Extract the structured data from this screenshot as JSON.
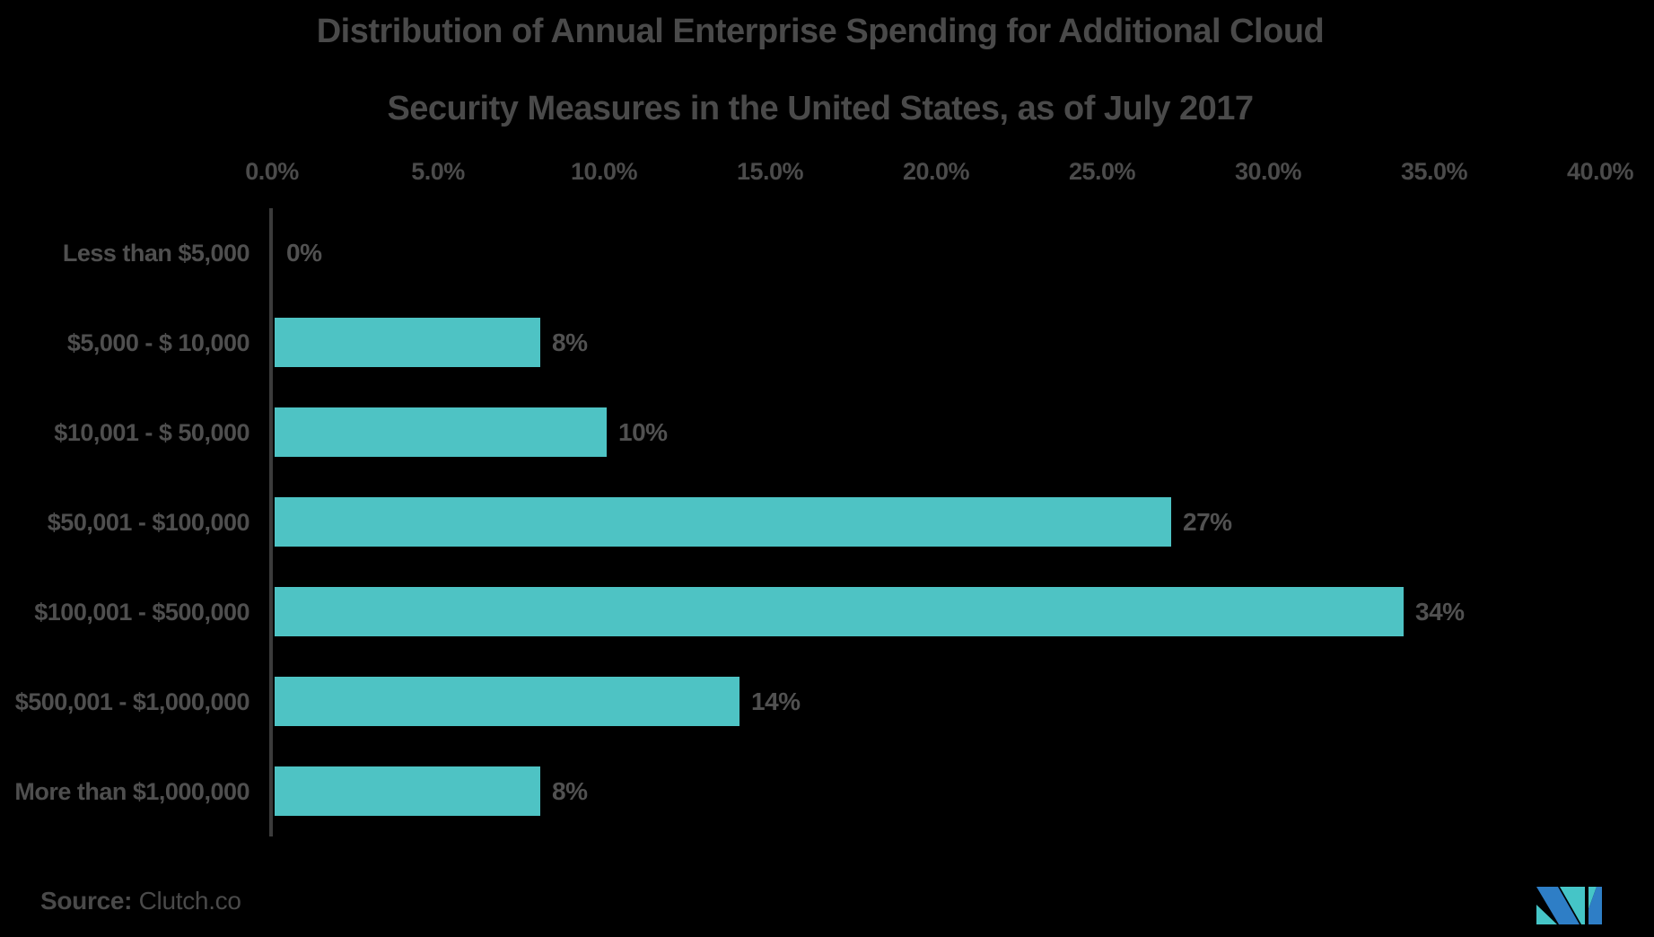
{
  "title": {
    "line1": "Distribution of Annual Enterprise Spending for Additional Cloud",
    "line2": "Security Measures in the United States, as of July 2017"
  },
  "chart_data": {
    "type": "bar",
    "orientation": "horizontal",
    "title": "Distribution of Annual Enterprise Spending for Additional Cloud Security Measures in the United States, as of July 2017",
    "categories": [
      "Less than $5,000",
      "$5,000 - $ 10,000",
      "$10,001 - $ 50,000",
      "$50,001 - $100,000",
      "$100,001 - $500,000",
      "$500,001 - $1,000,000",
      "More than $1,000,000"
    ],
    "values": [
      0,
      8,
      10,
      27,
      34,
      14,
      8
    ],
    "value_labels": [
      "0%",
      "8%",
      "10%",
      "27%",
      "34%",
      "14%",
      "8%"
    ],
    "x_axis": {
      "position": "top",
      "min": 0,
      "max": 40,
      "tick_step": 5,
      "ticks": [
        "0.0%",
        "5.0%",
        "10.0%",
        "15.0%",
        "20.0%",
        "25.0%",
        "30.0%",
        "35.0%",
        "40.0%"
      ]
    },
    "grid": false,
    "legend": false,
    "bar_color": "#4ec3c4"
  },
  "source": {
    "label": "Source:",
    "value": "Clutch.co"
  },
  "logo": {
    "name": "mordor-intelligence-m-mark",
    "teal": "#45c5c7",
    "blue": "#2e7ec6"
  },
  "colors": {
    "background": "#000000",
    "title_text": "#4a4a4a",
    "axis_text": "#4b4b4b",
    "category_text": "#4f4f4f",
    "value_text": "#515151",
    "axis_line": "#3b3b3b",
    "bar": "#4ec3c4"
  }
}
